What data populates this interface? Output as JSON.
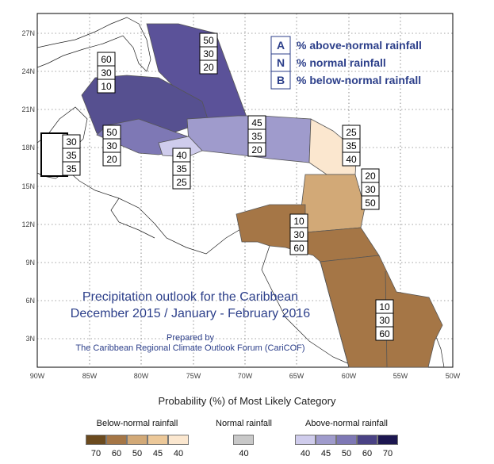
{
  "map": {
    "lat_labels": [
      "27N",
      "24N",
      "21N",
      "18N",
      "15N",
      "12N",
      "9N",
      "6N",
      "3N"
    ],
    "lon_labels": [
      "90W",
      "85W",
      "80W",
      "75W",
      "70W",
      "65W",
      "60W",
      "55W",
      "50W"
    ],
    "regions": [
      {
        "id": "bahamas",
        "a": "50",
        "n": "30",
        "b": "20",
        "color": "#5b5299"
      },
      {
        "id": "cuba",
        "a": "60",
        "n": "30",
        "b": "10",
        "color": "#565090"
      },
      {
        "id": "cayman-jamaica",
        "a": "50",
        "n": "30",
        "b": "20",
        "color": "#7e78b5"
      },
      {
        "id": "belize",
        "a": "30",
        "n": "35",
        "b": "35",
        "color": "#ffffff"
      },
      {
        "id": "hispaniola-pr",
        "a": "45",
        "n": "35",
        "b": "20",
        "color": "#9f9bcc"
      },
      {
        "id": "southern-haiti",
        "a": "40",
        "n": "35",
        "b": "25",
        "color": "#cfccec"
      },
      {
        "id": "northern-leewards",
        "a": "25",
        "n": "35",
        "b": "40",
        "color": "#fbe7cf"
      },
      {
        "id": "southern-lesser-antilles",
        "a": "20",
        "n": "30",
        "b": "50",
        "color": "#d2a977"
      },
      {
        "id": "southern-caribbean",
        "a": "10",
        "n": "30",
        "b": "60",
        "color": "#a57646"
      },
      {
        "id": "guianas",
        "a": "10",
        "n": "30",
        "b": "60",
        "color": "#a57646"
      }
    ],
    "key": [
      {
        "letter": "A",
        "text": "% above-normal rainfall"
      },
      {
        "letter": "N",
        "text": "% normal rainfall"
      },
      {
        "letter": "B",
        "text": "% below-normal rainfall"
      }
    ],
    "title_line1": "Precipitation outlook for the Caribbean",
    "title_line2": "December 2015 / January - February 2016",
    "prepared_line1": "Prepared by",
    "prepared_line2": "The Caribbean Regional Climate Outlook Forum (CariCOF)"
  },
  "legend": {
    "title": "Probability (%) of Most Likely Category",
    "below": {
      "label": "Below-normal rainfall",
      "ticks": [
        "70",
        "60",
        "50",
        "45",
        "40"
      ],
      "colors": [
        "#6b4a1e",
        "#a57646",
        "#d2a977",
        "#ecc899",
        "#fbe7cf"
      ]
    },
    "normal": {
      "label": "Normal rainfall",
      "ticks": [
        "40"
      ],
      "colors": [
        "#c8c8c8"
      ]
    },
    "above": {
      "label": "Above-normal rainfall",
      "ticks": [
        "40",
        "45",
        "50",
        "60",
        "70"
      ],
      "colors": [
        "#cfccec",
        "#9f9bcc",
        "#7e78b5",
        "#4a4285",
        "#1c1650"
      ]
    }
  }
}
